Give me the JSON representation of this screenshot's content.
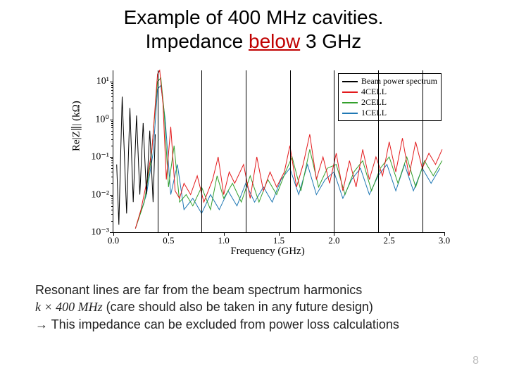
{
  "title": {
    "line1": "Example of 400 MHz cavities.",
    "line2a": "Impedance ",
    "hl": "below",
    "line2b": " 3 GHz"
  },
  "chart": {
    "type": "line",
    "background_color": "#ffffff",
    "xlabel": "Frequency (GHz)",
    "ylabel": "Re|Z∥| (kΩ)",
    "xlim": [
      0.0,
      3.0
    ],
    "ylim": [
      -3,
      1.3
    ],
    "xtick_step": 0.5,
    "xticks": [
      0.0,
      0.5,
      1.0,
      1.5,
      2.0,
      2.5,
      3.0
    ],
    "xticklabels": [
      "0.0",
      "0.5",
      "1.0",
      "1.5",
      "2.0",
      "2.5",
      "3.0"
    ],
    "ytick_exponents": [
      -3,
      -2,
      -1,
      0,
      1
    ],
    "yticklabels": [
      "10⁻³",
      "10⁻²",
      "10⁻¹",
      "10⁰",
      "10¹"
    ],
    "label_fontsize": 15,
    "tick_fontsize": 13,
    "harmonics_ghz": [
      0.4,
      0.8,
      1.2,
      1.6,
      2.0,
      2.4,
      2.8
    ],
    "harmonic_color": "#000000",
    "legend": {
      "entries": [
        {
          "label": "Beam power spectrum",
          "color": "#000000"
        },
        {
          "label": "4CELL",
          "color": "#e31a1c"
        },
        {
          "label": "2CELL",
          "color": "#33a02c"
        },
        {
          "label": "1CELL",
          "color": "#1f78b4"
        }
      ]
    },
    "series": {
      "beam": {
        "color": "#000000",
        "points": [
          [
            0.03,
            -1.2
          ],
          [
            0.05,
            -2.8
          ],
          [
            0.08,
            0.6
          ],
          [
            0.12,
            -2.5
          ],
          [
            0.15,
            0.3
          ],
          [
            0.18,
            -2.2
          ],
          [
            0.21,
            0.1
          ],
          [
            0.24,
            -2.0
          ],
          [
            0.27,
            -0.1
          ],
          [
            0.3,
            -2.0
          ],
          [
            0.33,
            -0.3
          ],
          [
            0.36,
            -2.2
          ],
          [
            0.38,
            -0.4
          ]
        ]
      },
      "cell4": {
        "color": "#e31a1c",
        "points": [
          [
            0.2,
            -2.9
          ],
          [
            0.25,
            -2.4
          ],
          [
            0.3,
            -1.7
          ],
          [
            0.35,
            -0.8
          ],
          [
            0.4,
            1.2
          ],
          [
            0.42,
            1.3
          ],
          [
            0.45,
            0.4
          ],
          [
            0.48,
            -1.6
          ],
          [
            0.52,
            -0.2
          ],
          [
            0.56,
            -1.9
          ],
          [
            0.6,
            -2.1
          ],
          [
            0.64,
            -1.7
          ],
          [
            0.7,
            -2.0
          ],
          [
            0.76,
            -1.5
          ],
          [
            0.82,
            -2.2
          ],
          [
            0.9,
            -1.6
          ],
          [
            0.95,
            -1.0
          ],
          [
            1.0,
            -2.0
          ],
          [
            1.05,
            -1.4
          ],
          [
            1.1,
            -1.7
          ],
          [
            1.18,
            -1.2
          ],
          [
            1.24,
            -2.1
          ],
          [
            1.3,
            -1.0
          ],
          [
            1.36,
            -1.9
          ],
          [
            1.42,
            -1.4
          ],
          [
            1.48,
            -1.8
          ],
          [
            1.55,
            -1.4
          ],
          [
            1.6,
            -0.7
          ],
          [
            1.66,
            -1.8
          ],
          [
            1.72,
            -1.2
          ],
          [
            1.78,
            -0.4
          ],
          [
            1.84,
            -1.6
          ],
          [
            1.9,
            -1.0
          ],
          [
            1.96,
            -1.7
          ],
          [
            2.02,
            -0.9
          ],
          [
            2.08,
            -1.9
          ],
          [
            2.14,
            -1.1
          ],
          [
            2.2,
            -1.8
          ],
          [
            2.26,
            -0.8
          ],
          [
            2.32,
            -1.6
          ],
          [
            2.38,
            -1.0
          ],
          [
            2.44,
            -1.5
          ],
          [
            2.5,
            -0.6
          ],
          [
            2.56,
            -1.4
          ],
          [
            2.62,
            -0.5
          ],
          [
            2.68,
            -1.5
          ],
          [
            2.74,
            -0.6
          ],
          [
            2.8,
            -1.3
          ],
          [
            2.86,
            -0.9
          ],
          [
            2.92,
            -1.2
          ],
          [
            2.98,
            -0.8
          ]
        ]
      },
      "cell2": {
        "color": "#33a02c",
        "points": [
          [
            0.2,
            -2.9
          ],
          [
            0.28,
            -2.2
          ],
          [
            0.34,
            -1.1
          ],
          [
            0.4,
            1.0
          ],
          [
            0.43,
            1.1
          ],
          [
            0.46,
            0.2
          ],
          [
            0.5,
            -1.8
          ],
          [
            0.55,
            -0.7
          ],
          [
            0.6,
            -2.2
          ],
          [
            0.66,
            -2.0
          ],
          [
            0.72,
            -2.3
          ],
          [
            0.8,
            -1.8
          ],
          [
            0.88,
            -2.4
          ],
          [
            0.94,
            -1.5
          ],
          [
            1.0,
            -2.1
          ],
          [
            1.08,
            -1.7
          ],
          [
            1.16,
            -2.2
          ],
          [
            1.24,
            -1.5
          ],
          [
            1.32,
            -2.2
          ],
          [
            1.4,
            -1.6
          ],
          [
            1.48,
            -2.0
          ],
          [
            1.56,
            -1.4
          ],
          [
            1.62,
            -1.0
          ],
          [
            1.7,
            -1.9
          ],
          [
            1.78,
            -0.8
          ],
          [
            1.86,
            -1.8
          ],
          [
            1.94,
            -1.3
          ],
          [
            2.02,
            -1.2
          ],
          [
            2.1,
            -2.0
          ],
          [
            2.18,
            -1.4
          ],
          [
            2.26,
            -1.1
          ],
          [
            2.34,
            -1.9
          ],
          [
            2.42,
            -1.3
          ],
          [
            2.5,
            -1.0
          ],
          [
            2.58,
            -1.7
          ],
          [
            2.66,
            -1.0
          ],
          [
            2.74,
            -1.8
          ],
          [
            2.82,
            -1.1
          ],
          [
            2.9,
            -1.5
          ],
          [
            2.98,
            -1.1
          ]
        ]
      },
      "cell1": {
        "color": "#1f78b4",
        "points": [
          [
            0.2,
            -2.9
          ],
          [
            0.3,
            -2.0
          ],
          [
            0.36,
            -0.9
          ],
          [
            0.4,
            0.8
          ],
          [
            0.43,
            0.9
          ],
          [
            0.47,
            0.0
          ],
          [
            0.52,
            -2.0
          ],
          [
            0.58,
            -1.2
          ],
          [
            0.64,
            -2.4
          ],
          [
            0.72,
            -2.1
          ],
          [
            0.8,
            -2.5
          ],
          [
            0.88,
            -2.0
          ],
          [
            0.96,
            -2.4
          ],
          [
            1.04,
            -1.9
          ],
          [
            1.12,
            -2.3
          ],
          [
            1.2,
            -1.7
          ],
          [
            1.28,
            -2.2
          ],
          [
            1.36,
            -1.8
          ],
          [
            1.44,
            -2.2
          ],
          [
            1.52,
            -1.6
          ],
          [
            1.6,
            -1.3
          ],
          [
            1.68,
            -2.0
          ],
          [
            1.76,
            -1.2
          ],
          [
            1.84,
            -2.0
          ],
          [
            1.92,
            -1.6
          ],
          [
            2.0,
            -1.4
          ],
          [
            2.08,
            -2.1
          ],
          [
            2.16,
            -1.6
          ],
          [
            2.24,
            -1.3
          ],
          [
            2.32,
            -2.0
          ],
          [
            2.4,
            -1.5
          ],
          [
            2.48,
            -1.2
          ],
          [
            2.56,
            -1.9
          ],
          [
            2.64,
            -1.2
          ],
          [
            2.72,
            -1.9
          ],
          [
            2.8,
            -1.3
          ],
          [
            2.88,
            -1.7
          ],
          [
            2.96,
            -1.3
          ]
        ]
      }
    }
  },
  "body": {
    "l1": "Resonant lines are far from the beam spectrum harmonics",
    "l2a": "k × 400 MHz",
    "l2b": " (care should also be taken in any future design)",
    "l3": "→ This impedance can be excluded from power loss calculations"
  },
  "slide_number": "8"
}
